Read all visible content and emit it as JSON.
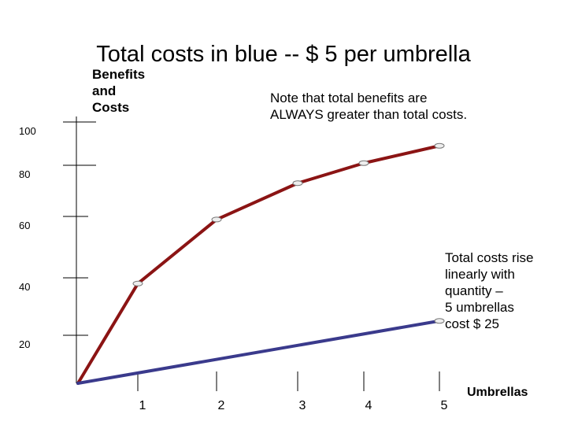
{
  "chart_data": {
    "type": "line",
    "title": "Total costs in blue -- $ 5 per umbrella",
    "ylabel": [
      "Benefits",
      "and",
      "Costs"
    ],
    "xlabel": "Umbrellas",
    "xlim": [
      0,
      5
    ],
    "ylim": [
      0,
      100
    ],
    "x_ticks": [
      1,
      2,
      3,
      4,
      5
    ],
    "y_ticks": [
      20,
      40,
      60,
      80,
      100
    ],
    "series": [
      {
        "name": "Total benefits",
        "color": "#8b1414",
        "x": [
          0,
          1,
          2,
          3,
          4,
          5
        ],
        "values": [
          0,
          38,
          59,
          73,
          81,
          89
        ]
      },
      {
        "name": "Total costs",
        "color": "#3a3a8c",
        "x": [
          0,
          5
        ],
        "values": [
          0,
          25
        ]
      }
    ],
    "annotations": {
      "note_top": [
        "Note that total benefits are",
        "ALWAYS greater than total costs."
      ],
      "note_right": [
        "Total costs rise",
        "linearly with",
        "quantity –",
        "5 umbrellas",
        "cost $ 25"
      ]
    }
  }
}
